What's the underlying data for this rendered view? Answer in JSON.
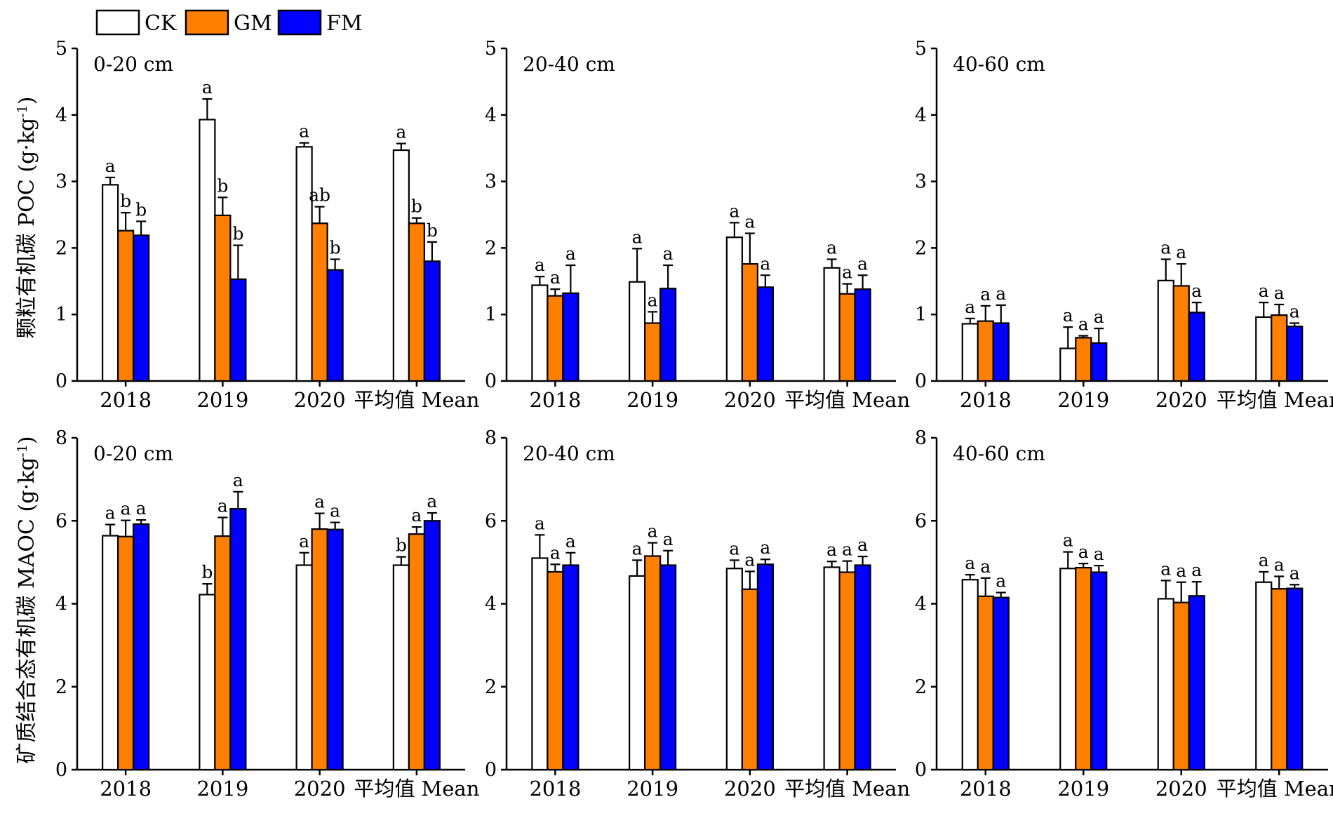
{
  "legend": [
    {
      "name": "CK",
      "color": "#ffffff"
    },
    {
      "name": "GM",
      "color": "#ff8000"
    },
    {
      "name": "FM",
      "color": "#0000ff"
    }
  ],
  "row_labels": {
    "poc": "颗粒有机碳 POC (g·kg-1)",
    "maoc": "矿质结合态有机碳 MAOC (g·kg-1)"
  },
  "chart_data": [
    {
      "type": "bar",
      "row": "POC",
      "depth": "0-20 cm",
      "categories": [
        "2018",
        "2019",
        "2020",
        "平均值 Mean"
      ],
      "ylim": [
        0,
        5
      ],
      "yticks": [
        0,
        1,
        2,
        3,
        4,
        5
      ],
      "grid": false,
      "series": [
        {
          "name": "CK",
          "values": [
            2.95,
            3.93,
            3.52,
            3.47
          ],
          "errors": [
            0.11,
            0.31,
            0.06,
            0.1
          ],
          "letters": [
            "a",
            "a",
            "a",
            "a"
          ]
        },
        {
          "name": "GM",
          "values": [
            2.26,
            2.49,
            2.37,
            2.37
          ],
          "errors": [
            0.27,
            0.27,
            0.25,
            0.08
          ],
          "letters": [
            "b",
            "b",
            "ab",
            "b"
          ]
        },
        {
          "name": "FM",
          "values": [
            2.19,
            1.53,
            1.67,
            1.8
          ],
          "errors": [
            0.21,
            0.51,
            0.16,
            0.29
          ],
          "letters": [
            "b",
            "b",
            "b",
            "b"
          ]
        }
      ]
    },
    {
      "type": "bar",
      "row": "POC",
      "depth": "20-40 cm",
      "categories": [
        "2018",
        "2019",
        "2020",
        "平均值 Mean"
      ],
      "ylim": [
        0,
        5
      ],
      "yticks": [
        0,
        1,
        2,
        3,
        4,
        5
      ],
      "grid": false,
      "series": [
        {
          "name": "CK",
          "values": [
            1.44,
            1.49,
            2.16,
            1.7
          ],
          "errors": [
            0.13,
            0.5,
            0.22,
            0.13
          ],
          "letters": [
            "a",
            "a",
            "a",
            "a"
          ]
        },
        {
          "name": "GM",
          "values": [
            1.28,
            0.87,
            1.76,
            1.31
          ],
          "errors": [
            0.1,
            0.17,
            0.46,
            0.15
          ],
          "letters": [
            "a",
            "a",
            "a",
            "a"
          ]
        },
        {
          "name": "FM",
          "values": [
            1.32,
            1.39,
            1.41,
            1.38
          ],
          "errors": [
            0.42,
            0.35,
            0.18,
            0.21
          ],
          "letters": [
            "a",
            "a",
            "a",
            "a"
          ]
        }
      ]
    },
    {
      "type": "bar",
      "row": "POC",
      "depth": "40-60 cm",
      "categories": [
        "2018",
        "2019",
        "2020",
        "平均值 Mean"
      ],
      "ylim": [
        0,
        5
      ],
      "yticks": [
        0,
        1,
        2,
        3,
        4,
        5
      ],
      "grid": false,
      "series": [
        {
          "name": "CK",
          "values": [
            0.86,
            0.49,
            1.51,
            0.96
          ],
          "errors": [
            0.08,
            0.32,
            0.32,
            0.22
          ],
          "letters": [
            "a",
            "a",
            "a",
            "a"
          ]
        },
        {
          "name": "GM",
          "values": [
            0.9,
            0.65,
            1.43,
            0.99
          ],
          "errors": [
            0.23,
            0.03,
            0.33,
            0.16
          ],
          "letters": [
            "a",
            "a",
            "a",
            "a"
          ]
        },
        {
          "name": "FM",
          "values": [
            0.87,
            0.57,
            1.03,
            0.82
          ],
          "errors": [
            0.27,
            0.22,
            0.15,
            0.05
          ],
          "letters": [
            "a",
            "a",
            "a",
            "a"
          ]
        }
      ]
    },
    {
      "type": "bar",
      "row": "MAOC",
      "depth": "0-20 cm",
      "categories": [
        "2018",
        "2019",
        "2020",
        "平均值 Mean"
      ],
      "ylim": [
        0,
        8
      ],
      "yticks": [
        0,
        2,
        4,
        6,
        8
      ],
      "grid": false,
      "series": [
        {
          "name": "CK",
          "values": [
            5.64,
            4.22,
            4.93,
            4.93
          ],
          "errors": [
            0.27,
            0.26,
            0.3,
            0.2
          ],
          "letters": [
            "a",
            "b",
            "a",
            "b"
          ]
        },
        {
          "name": "GM",
          "values": [
            5.62,
            5.63,
            5.8,
            5.68
          ],
          "errors": [
            0.39,
            0.45,
            0.38,
            0.17
          ],
          "letters": [
            "a",
            "a",
            "a",
            "a"
          ]
        },
        {
          "name": "FM",
          "values": [
            5.92,
            6.29,
            5.79,
            6.0
          ],
          "errors": [
            0.1,
            0.41,
            0.17,
            0.19
          ],
          "letters": [
            "a",
            "a",
            "a",
            "a"
          ]
        }
      ]
    },
    {
      "type": "bar",
      "row": "MAOC",
      "depth": "20-40 cm",
      "categories": [
        "2018",
        "2019",
        "2020",
        "平均值 Mean"
      ],
      "ylim": [
        0,
        8
      ],
      "yticks": [
        0,
        2,
        4,
        6,
        8
      ],
      "grid": false,
      "series": [
        {
          "name": "CK",
          "values": [
            5.1,
            4.67,
            4.85,
            4.88
          ],
          "errors": [
            0.56,
            0.38,
            0.2,
            0.14
          ],
          "letters": [
            "a",
            "a",
            "a",
            "a"
          ]
        },
        {
          "name": "GM",
          "values": [
            4.77,
            5.15,
            4.35,
            4.76
          ],
          "errors": [
            0.18,
            0.32,
            0.43,
            0.27
          ],
          "letters": [
            "a",
            "a",
            "a",
            "a"
          ]
        },
        {
          "name": "FM",
          "values": [
            4.93,
            4.93,
            4.95,
            4.93
          ],
          "errors": [
            0.3,
            0.35,
            0.12,
            0.21
          ],
          "letters": [
            "a",
            "a",
            "a",
            "a"
          ]
        }
      ]
    },
    {
      "type": "bar",
      "row": "MAOC",
      "depth": "40-60 cm",
      "categories": [
        "2018",
        "2019",
        "2020",
        "平均值 Mean"
      ],
      "ylim": [
        0,
        8
      ],
      "yticks": [
        0,
        2,
        4,
        6,
        8
      ],
      "grid": false,
      "series": [
        {
          "name": "CK",
          "values": [
            4.58,
            4.85,
            4.12,
            4.52
          ],
          "errors": [
            0.12,
            0.4,
            0.44,
            0.25
          ],
          "letters": [
            "a",
            "a",
            "a",
            "a"
          ]
        },
        {
          "name": "GM",
          "values": [
            4.18,
            4.87,
            4.03,
            4.36
          ],
          "errors": [
            0.44,
            0.1,
            0.49,
            0.3
          ],
          "letters": [
            "a",
            "a",
            "a",
            "a"
          ]
        },
        {
          "name": "FM",
          "values": [
            4.15,
            4.76,
            4.19,
            4.37
          ],
          "errors": [
            0.12,
            0.16,
            0.34,
            0.09
          ],
          "letters": [
            "a",
            "a",
            "a",
            "a"
          ]
        }
      ]
    }
  ]
}
